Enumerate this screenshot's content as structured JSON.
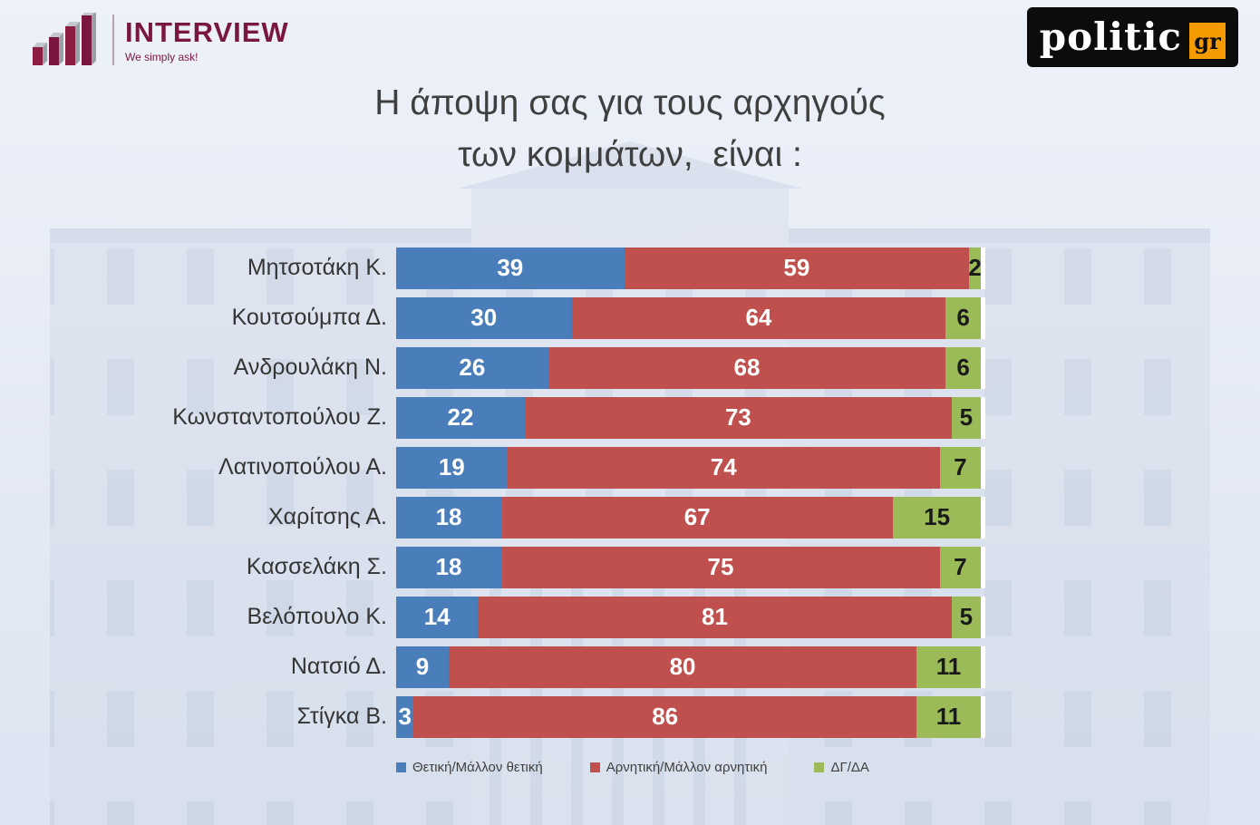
{
  "header": {
    "interview": {
      "name": "INTERVIEW",
      "tagline": "We simply ask!"
    },
    "politic": {
      "text": "politic",
      "suffix": "gr"
    }
  },
  "title": {
    "line1": "Η άποψη σας για τους αρχηγούς",
    "line2": "των κομμάτων,  είναι :"
  },
  "chart_data": {
    "type": "bar",
    "orientation": "horizontal",
    "stacked": true,
    "unit": "percent",
    "title": "Η άποψη σας για τους αρχηγούς των κομμάτων, είναι :",
    "xlim": [
      0,
      100
    ],
    "legend_position": "bottom",
    "categories": [
      "Μητσοτάκη Κ.",
      "Κουτσούμπα Δ.",
      "Ανδρουλάκη Ν.",
      "Κωνσταντοπούλου Ζ.",
      "Λατινοπούλου Α.",
      "Χαρίτσης Α.",
      "Κασσελάκη Σ.",
      "Βελόπουλο Κ.",
      "Νατσιό Δ.",
      "Στίγκα Β."
    ],
    "series": [
      {
        "name": "Θετική/Μάλλον θετική",
        "key": "positive",
        "color": "#4a7ebb",
        "text_color": "#ffffff",
        "values": [
          39,
          30,
          26,
          22,
          19,
          18,
          18,
          14,
          9,
          3
        ]
      },
      {
        "name": "Αρνητική/Μάλλον αρνητική",
        "key": "negative",
        "color": "#c0504d",
        "text_color": "#ffffff",
        "values": [
          59,
          64,
          68,
          73,
          74,
          67,
          75,
          81,
          80,
          86
        ]
      },
      {
        "name": "ΔΓ/ΔΑ",
        "key": "dk-da",
        "color": "#9bbb59",
        "text_color": "#1a1a1a",
        "values": [
          2,
          6,
          6,
          5,
          7,
          15,
          7,
          5,
          11,
          11
        ]
      }
    ]
  }
}
